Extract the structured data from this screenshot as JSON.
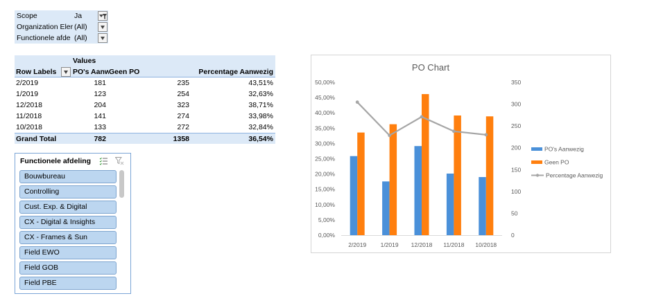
{
  "filters": [
    {
      "label": "Scope",
      "value": "Ja",
      "filtered": true
    },
    {
      "label": "Organization Eler",
      "value": "(All)",
      "filtered": false
    },
    {
      "label": "Functionele afde",
      "value": "(All)",
      "filtered": false
    }
  ],
  "pivot": {
    "values_label": "Values",
    "row_labels_header": "Row Labels",
    "col_po": "PO's Aanw",
    "col_geen": "Geen PO",
    "col_pct": "Percentage Aanwezig",
    "rows": [
      {
        "label": "2/2019",
        "po": "181",
        "geen": "235",
        "pct": "43,51%"
      },
      {
        "label": "1/2019",
        "po": "123",
        "geen": "254",
        "pct": "32,63%"
      },
      {
        "label": "12/2018",
        "po": "204",
        "geen": "323",
        "pct": "38,71%"
      },
      {
        "label": "11/2018",
        "po": "141",
        "geen": "274",
        "pct": "33,98%"
      },
      {
        "label": "10/2018",
        "po": "133",
        "geen": "272",
        "pct": "32,84%"
      }
    ],
    "total": {
      "label": "Grand Total",
      "po": "782",
      "geen": "1358",
      "pct": "36,54%"
    }
  },
  "slicer": {
    "title": "Functionele afdeling",
    "items": [
      "Bouwbureau",
      "Controlling",
      "Cust. Exp. & Digital",
      "CX - Digital & Insights",
      "CX - Frames & Sun",
      "Field EWO",
      "Field GOB",
      "Field PBE"
    ]
  },
  "chart_data": {
    "type": "bar",
    "title": "PO Chart",
    "categories": [
      "2/2019",
      "1/2019",
      "12/2018",
      "11/2018",
      "10/2018"
    ],
    "series": [
      {
        "name": "PO's Aanwezig",
        "kind": "bar",
        "axis": "right",
        "color": "#4a90d9",
        "values": [
          181,
          123,
          204,
          141,
          133
        ]
      },
      {
        "name": "Geen PO",
        "kind": "bar",
        "axis": "right",
        "color": "#ff7f0e",
        "values": [
          235,
          254,
          323,
          274,
          272
        ]
      },
      {
        "name": "Percentage Aanwezig",
        "kind": "line",
        "axis": "left",
        "color": "#a6a6a6",
        "values": [
          43.51,
          32.63,
          38.71,
          33.98,
          32.84
        ]
      }
    ],
    "y_left": {
      "min": 0,
      "max": 50,
      "step": 5,
      "tick_labels": [
        "0,00%",
        "5,00%",
        "10,00%",
        "15,00%",
        "20,00%",
        "25,00%",
        "30,00%",
        "35,00%",
        "40,00%",
        "45,00%",
        "50,00%"
      ]
    },
    "y_right": {
      "min": 0,
      "max": 350,
      "step": 50,
      "tick_labels": [
        "0",
        "50",
        "100",
        "150",
        "200",
        "250",
        "300",
        "350"
      ]
    },
    "legend_position": "right",
    "grid": false
  }
}
